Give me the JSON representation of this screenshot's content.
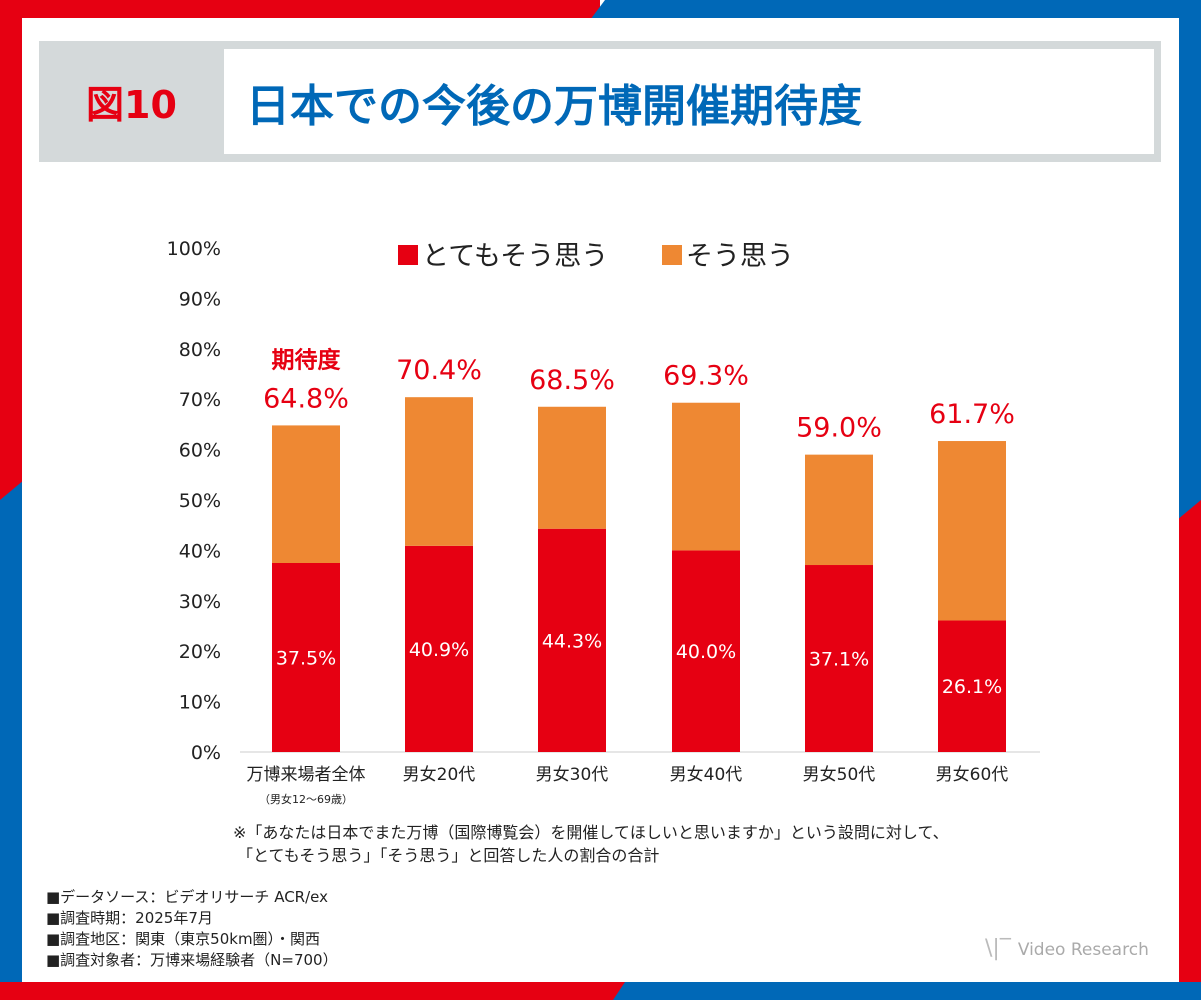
{
  "header": {
    "figure_label": "図10",
    "title": "日本での今後の万博開催期待度"
  },
  "colors": {
    "very": "#e60012",
    "somewhat": "#ee8833",
    "frame_red": "#e60012",
    "frame_blue": "#0068b7",
    "title": "#0068b7"
  },
  "chart_data": {
    "type": "bar",
    "stacked": true,
    "categories": [
      "万博来場者全体",
      "男女20代",
      "男女30代",
      "男女40代",
      "男女50代",
      "男女60代"
    ],
    "category_sublabel": "（男女12～69歳）",
    "series": [
      {
        "name": "とてもそう思う",
        "values": [
          37.5,
          40.9,
          44.3,
          40.0,
          37.1,
          26.1
        ],
        "labels": [
          "37.5%",
          "40.9%",
          "44.3%",
          "40.0%",
          "37.1%",
          "26.1%"
        ]
      },
      {
        "name": "そう思う",
        "values": [
          27.3,
          29.5,
          24.2,
          29.3,
          21.9,
          35.6
        ]
      }
    ],
    "totals": [
      64.8,
      70.4,
      68.5,
      69.3,
      59.0,
      61.7
    ],
    "total_labels": [
      "64.8%",
      "70.4%",
      "68.5%",
      "69.3%",
      "59.0%",
      "61.7%"
    ],
    "total_caption": "期待度",
    "yticks": [
      "0%",
      "10%",
      "20%",
      "30%",
      "40%",
      "50%",
      "60%",
      "70%",
      "80%",
      "90%",
      "100%"
    ],
    "ylim": [
      0,
      100
    ],
    "legend": "top",
    "grid": false
  },
  "notes": {
    "footnote1": "※「あなたは日本でまた万博（国際博覧会）を開催してほしいと思いますか」という設問に対して、",
    "footnote2": "「とてもそう思う」「そう思う」と回答した人の割合の合計",
    "source": [
      "■データソース：ビデオリサーチ ACR/ex",
      "■調査時期：2025年7月",
      "■調査地区：関東（東京50km圏）・関西",
      "■調査対象者：万博来場経験者（N=700）"
    ]
  },
  "logo": "Video Research"
}
